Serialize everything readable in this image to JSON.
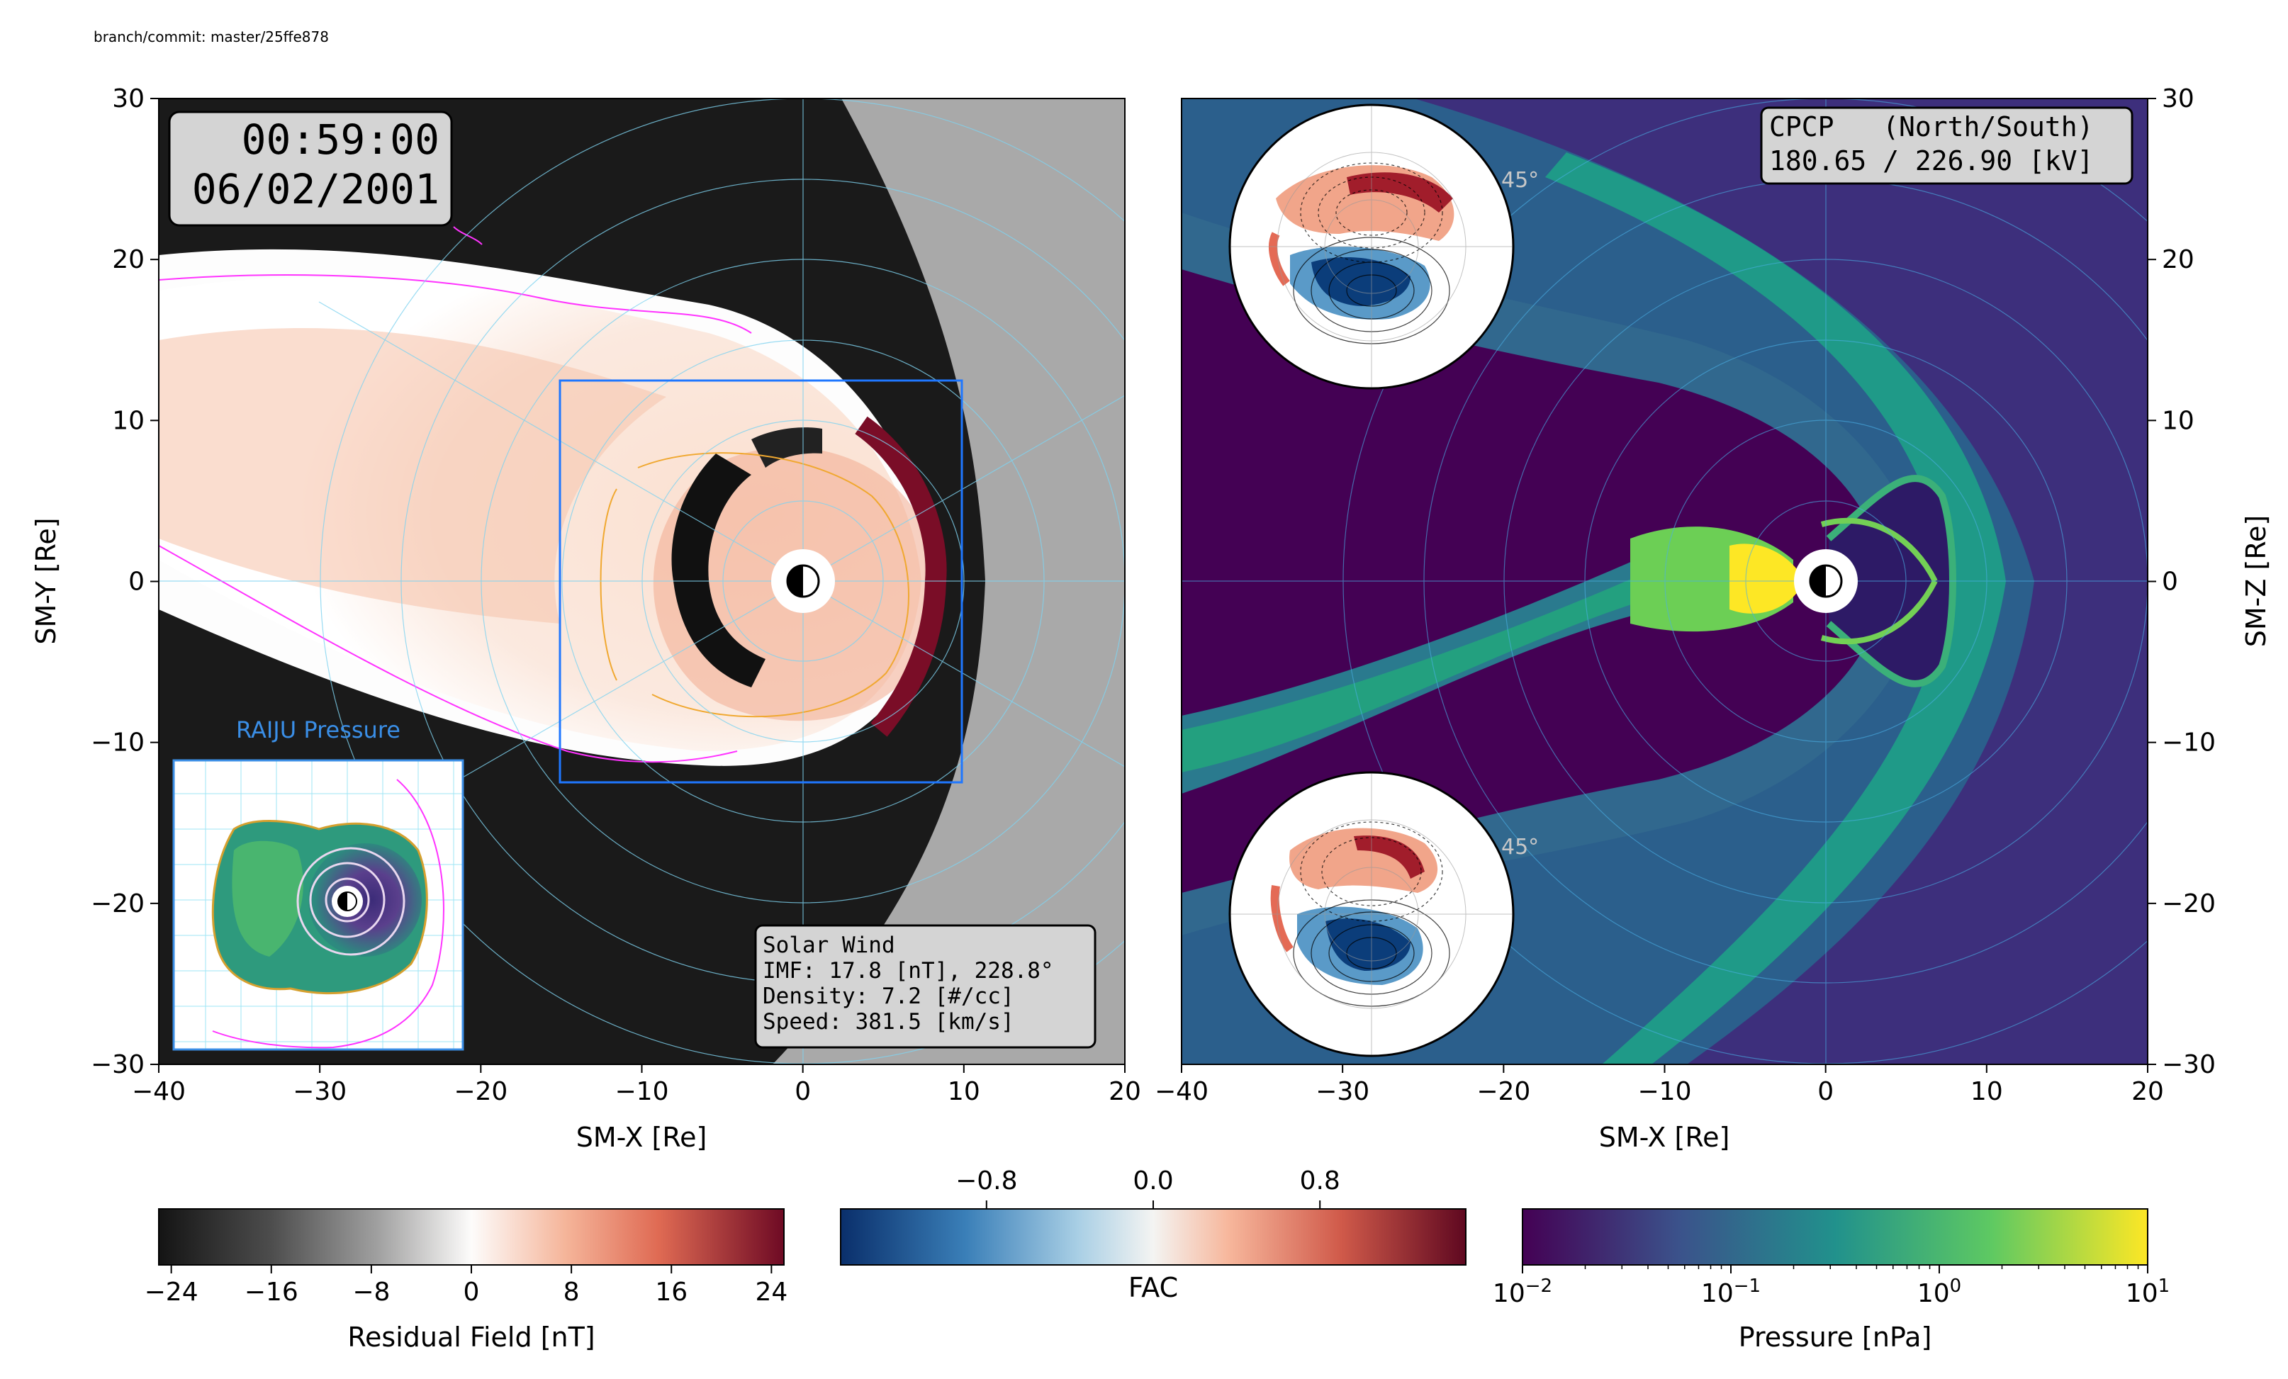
{
  "caption": "branch/commit: master/25ffe878",
  "left_panel": {
    "time": "00:59:00",
    "date": "06/02/2001",
    "xlabel": "SM-X [Re]",
    "ylabel": "SM-Y [Re]",
    "inset_title": "RAIJU Pressure",
    "solar_wind": {
      "title": "Solar Wind",
      "imf": "IMF: 17.8 [nT], 228.8°",
      "density": "Density:   7.2 [#/cc]",
      "speed": "Speed:   381.5 [km/s]"
    }
  },
  "right_panel": {
    "xlabel": "SM-X [Re]",
    "ylabel": "SM-Z [Re]",
    "cpcp_title": "CPCP   (North/South)",
    "cpcp_values": "180.65 / 226.90 [kV]",
    "polar_label_north": "45°",
    "polar_label_south": "45°"
  },
  "colorbars": {
    "residual": {
      "label": "Residual Field [nT]",
      "ticks": [
        "−24",
        "−16",
        "−8",
        "0",
        "8",
        "16",
        "24"
      ],
      "tick_values": [
        -24,
        -16,
        -8,
        0,
        8,
        16,
        24
      ],
      "range": [
        -25,
        25
      ]
    },
    "fac": {
      "label": "FAC",
      "ticks": [
        "−0.8",
        "0.0",
        "0.8"
      ],
      "tick_values": [
        -0.8,
        0.0,
        0.8
      ],
      "range": [
        -1.5,
        1.5
      ]
    },
    "pressure": {
      "label": "Pressure [nPa]",
      "tick_bases": [
        "10",
        "10",
        "10",
        "10"
      ],
      "tick_exps": [
        "−2",
        "−1",
        "0",
        "1"
      ],
      "tick_values": [
        0.01,
        0.1,
        1,
        10
      ],
      "scale": "log"
    }
  },
  "chart_data": [
    {
      "type": "heatmap",
      "panel": "left",
      "xlabel": "SM-X [Re]",
      "ylabel": "SM-Y [Re]",
      "xlim": [
        -40,
        20
      ],
      "ylim": [
        -30,
        30
      ],
      "xticks": [
        "−40",
        "−30",
        "−20",
        "−10",
        "0",
        "10",
        "20"
      ],
      "xtick_values": [
        -40,
        -30,
        -20,
        -10,
        0,
        10,
        20
      ],
      "yticks": [
        "−30",
        "−20",
        "−10",
        "0",
        "10",
        "20",
        "30"
      ],
      "ytick_values": [
        -30,
        -20,
        -10,
        0,
        10,
        20,
        30
      ],
      "colorbar": "Residual Field [nT]",
      "box_region": {
        "x": [
          -15,
          10
        ],
        "y": [
          -12.5,
          12.5
        ]
      }
    },
    {
      "type": "heatmap",
      "panel": "right",
      "xlabel": "SM-X [Re]",
      "ylabel": "SM-Z [Re]",
      "xlim": [
        -40,
        20
      ],
      "ylim": [
        -30,
        30
      ],
      "xticks": [
        "−40",
        "−30",
        "−20",
        "−10",
        "0",
        "10",
        "20"
      ],
      "xtick_values": [
        -40,
        -30,
        -20,
        -10,
        0,
        10,
        20
      ],
      "yticks": [
        "−30",
        "−20",
        "−10",
        "0",
        "10",
        "20",
        "30"
      ],
      "ytick_values": [
        -30,
        -20,
        -10,
        0,
        10,
        20,
        30
      ],
      "colorbar": "Pressure [nPa]",
      "cpcp_kV": {
        "north": 180.65,
        "south": 226.9
      }
    }
  ],
  "colors": {
    "box": "#1f77ff",
    "inset_title": "#3a8ee6",
    "grid": "#7fd3f0",
    "magenta": "#ff33ff",
    "orange": "#f0a830"
  }
}
